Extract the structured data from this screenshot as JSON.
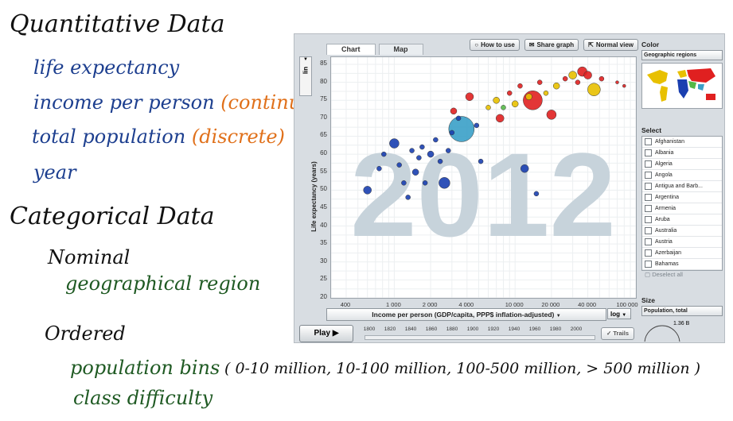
{
  "notes": {
    "quant_title": "Quantitative Data",
    "quant_items": [
      {
        "text": "life expectancy",
        "tag": ""
      },
      {
        "text": "income per person",
        "tag": "(continuous)"
      },
      {
        "text": "total population",
        "tag": "(discrete)"
      },
      {
        "text": "year",
        "tag": ""
      }
    ],
    "cat_title": "Categorical Data",
    "nominal_label": "Nominal",
    "nominal_item": "geographical region",
    "ordered_label": "Ordered",
    "ordered_items": [
      "population bins",
      "class difficulty"
    ],
    "bins": "( 0-10 million, 10-100 million, 100-500 million, > 500 million )"
  },
  "app": {
    "tabs": [
      {
        "label": "Chart"
      },
      {
        "label": "Map"
      }
    ],
    "buttons": {
      "how_to_use": "How to use",
      "share_graph": "Share graph",
      "normal_view": "Normal view"
    },
    "y_scale": "lin",
    "y_label": "Life expectancy (years)",
    "x_label": "Income per person (GDP/capita, PPP$ inflation-adjusted)",
    "x_scale": "log",
    "year_watermark": "2012",
    "play_label": "Play",
    "trails_label": "Trails",
    "timeline_years": [
      "1800",
      "1820",
      "1840",
      "1860",
      "1880",
      "1900",
      "1920",
      "1940",
      "1960",
      "1980",
      "2000"
    ],
    "color_label": "Color",
    "color_value": "Geographic regions",
    "select_label": "Select",
    "countries": [
      "Afghanistan",
      "Albania",
      "Algeria",
      "Angola",
      "Antigua and Barb...",
      "Argentina",
      "Armenia",
      "Aruba",
      "Australia",
      "Austria",
      "Azerbaijan",
      "Bahamas",
      "Bahrain"
    ],
    "deselect_label": "Deselect all",
    "size_label": "Size",
    "size_value": "Population, total",
    "size_readout": "1.36 B"
  },
  "chart_data": {
    "type": "scatter",
    "xlabel": "Income per person (GDP/capita, PPP$ inflation-adjusted)",
    "ylabel": "Life expectancy (years)",
    "x_scale": "log",
    "xlim": [
      300,
      100000
    ],
    "ylim": [
      20,
      87
    ],
    "x_ticks": [
      "400",
      "1 000",
      "2 000",
      "4 000",
      "10 000",
      "20 000",
      "40 000",
      "100 000"
    ],
    "y_ticks": [
      "20",
      "25",
      "30",
      "35",
      "40",
      "45",
      "50",
      "55",
      "60",
      "65",
      "70",
      "75",
      "80",
      "85"
    ],
    "points": [
      {
        "x": 600,
        "y": 50,
        "r": 5,
        "color": "#1a3fb0"
      },
      {
        "x": 750,
        "y": 56,
        "r": 3,
        "color": "#1a3fb0"
      },
      {
        "x": 820,
        "y": 60,
        "r": 3,
        "color": "#1a3fb0"
      },
      {
        "x": 1000,
        "y": 63,
        "r": 6,
        "color": "#1a3fb0"
      },
      {
        "x": 1100,
        "y": 57,
        "r": 3,
        "color": "#1a3fb0"
      },
      {
        "x": 1200,
        "y": 52,
        "r": 3,
        "color": "#1a3fb0"
      },
      {
        "x": 1300,
        "y": 48,
        "r": 3,
        "color": "#1a3fb0"
      },
      {
        "x": 1400,
        "y": 61,
        "r": 3,
        "color": "#1a3fb0"
      },
      {
        "x": 1500,
        "y": 55,
        "r": 4,
        "color": "#1a3fb0"
      },
      {
        "x": 1600,
        "y": 59,
        "r": 3,
        "color": "#1a3fb0"
      },
      {
        "x": 1700,
        "y": 62,
        "r": 3,
        "color": "#1a3fb0"
      },
      {
        "x": 1800,
        "y": 52,
        "r": 3,
        "color": "#1a3fb0"
      },
      {
        "x": 2000,
        "y": 60,
        "r": 4,
        "color": "#1a3fb0"
      },
      {
        "x": 2200,
        "y": 64,
        "r": 3,
        "color": "#1a3fb0"
      },
      {
        "x": 2400,
        "y": 58,
        "r": 3,
        "color": "#1a3fb0"
      },
      {
        "x": 2600,
        "y": 52,
        "r": 7,
        "color": "#1a3fb0"
      },
      {
        "x": 2800,
        "y": 61,
        "r": 3,
        "color": "#1a3fb0"
      },
      {
        "x": 3000,
        "y": 66,
        "r": 3,
        "color": "#1a3fb0"
      },
      {
        "x": 3400,
        "y": 70,
        "r": 3,
        "color": "#1a3fb0"
      },
      {
        "x": 3600,
        "y": 67,
        "r": 16,
        "color": "#3aa0c8"
      },
      {
        "x": 3100,
        "y": 72,
        "r": 4,
        "color": "#e02020"
      },
      {
        "x": 4200,
        "y": 76,
        "r": 5,
        "color": "#e02020"
      },
      {
        "x": 4800,
        "y": 68,
        "r": 3,
        "color": "#1a3fb0"
      },
      {
        "x": 5200,
        "y": 58,
        "r": 3,
        "color": "#1a3fb0"
      },
      {
        "x": 6000,
        "y": 73,
        "r": 3,
        "color": "#e8c000"
      },
      {
        "x": 7000,
        "y": 75,
        "r": 4,
        "color": "#e8c000"
      },
      {
        "x": 7500,
        "y": 70,
        "r": 5,
        "color": "#e02020"
      },
      {
        "x": 8000,
        "y": 73,
        "r": 3,
        "color": "#55b848"
      },
      {
        "x": 9000,
        "y": 77,
        "r": 3,
        "color": "#e02020"
      },
      {
        "x": 10000,
        "y": 74,
        "r": 4,
        "color": "#e8c000"
      },
      {
        "x": 11000,
        "y": 79,
        "r": 3,
        "color": "#e02020"
      },
      {
        "x": 12000,
        "y": 56,
        "r": 5,
        "color": "#1a3fb0"
      },
      {
        "x": 13000,
        "y": 76,
        "r": 4,
        "color": "#e8c000"
      },
      {
        "x": 14000,
        "y": 75,
        "r": 12,
        "color": "#e02020"
      },
      {
        "x": 15000,
        "y": 49,
        "r": 3,
        "color": "#1a3fb0"
      },
      {
        "x": 16000,
        "y": 80,
        "r": 3,
        "color": "#e02020"
      },
      {
        "x": 18000,
        "y": 77,
        "r": 3,
        "color": "#e8c000"
      },
      {
        "x": 20000,
        "y": 71,
        "r": 6,
        "color": "#e02020"
      },
      {
        "x": 22000,
        "y": 79,
        "r": 4,
        "color": "#e8c000"
      },
      {
        "x": 26000,
        "y": 81,
        "r": 3,
        "color": "#e02020"
      },
      {
        "x": 30000,
        "y": 82,
        "r": 5,
        "color": "#e8c000"
      },
      {
        "x": 33000,
        "y": 80,
        "r": 3,
        "color": "#e02020"
      },
      {
        "x": 36000,
        "y": 83,
        "r": 6,
        "color": "#e02020"
      },
      {
        "x": 40000,
        "y": 82,
        "r": 5,
        "color": "#e02020"
      },
      {
        "x": 45000,
        "y": 78,
        "r": 8,
        "color": "#e8c000"
      },
      {
        "x": 52000,
        "y": 81,
        "r": 3,
        "color": "#e02020"
      },
      {
        "x": 70000,
        "y": 80,
        "r": 2,
        "color": "#e02020"
      },
      {
        "x": 80000,
        "y": 79,
        "r": 2,
        "color": "#e02020"
      }
    ]
  },
  "colors": {
    "blue": "#1a3fb0",
    "cyan": "#3aa0c8",
    "red": "#e02020",
    "yellow": "#e8c000",
    "green": "#55b848"
  }
}
